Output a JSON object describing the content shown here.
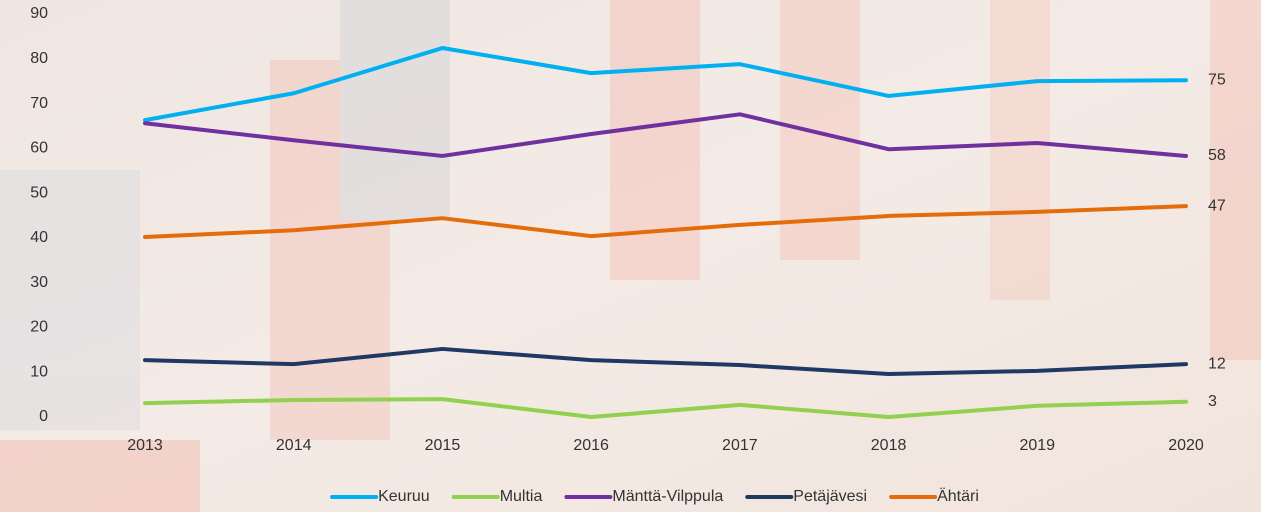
{
  "chart_data": {
    "type": "line",
    "categories": [
      "2013",
      "2014",
      "2015",
      "2016",
      "2017",
      "2018",
      "2019",
      "2020"
    ],
    "series": [
      {
        "name": "Keuruu",
        "color": "#00b0f0",
        "values": [
          66.3,
          72.3,
          82.4,
          76.8,
          78.8,
          71.7,
          75.0,
          75.2
        ],
        "value_labels": [
          null,
          null,
          null,
          null,
          null,
          null,
          null,
          "75"
        ]
      },
      {
        "name": "Multia",
        "color": "#92d050",
        "values": [
          3.1,
          3.8,
          4.0,
          0,
          2.7,
          0,
          2.5,
          3.4
        ],
        "value_labels": [
          null,
          null,
          null,
          null,
          null,
          null,
          null,
          "3"
        ]
      },
      {
        "name": "Mänttä-Vilppula",
        "color": "#7030a0",
        "values": [
          65.6,
          61.8,
          58.3,
          63.2,
          67.6,
          59.8,
          61.2,
          58.3
        ],
        "value_labels": [
          null,
          null,
          null,
          null,
          null,
          null,
          null,
          "58"
        ]
      },
      {
        "name": "Petäjävesi",
        "color": "#203864",
        "values": [
          12.7,
          11.8,
          15.2,
          12.7,
          11.6,
          9.6,
          10.3,
          11.8
        ],
        "value_labels": [
          null,
          null,
          null,
          null,
          null,
          null,
          null,
          "12"
        ]
      },
      {
        "name": "Ähtäri",
        "color": "#e46c0a",
        "values": [
          40.2,
          41.7,
          44.4,
          40.4,
          42.9,
          44.9,
          45.8,
          47.1
        ],
        "value_labels": [
          null,
          null,
          null,
          null,
          null,
          null,
          null,
          "47"
        ]
      }
    ],
    "ylim": [
      0,
      90
    ],
    "yticks": [
      0,
      10,
      20,
      30,
      40,
      50,
      60,
      70,
      80,
      90
    ],
    "legend": "bottom"
  }
}
